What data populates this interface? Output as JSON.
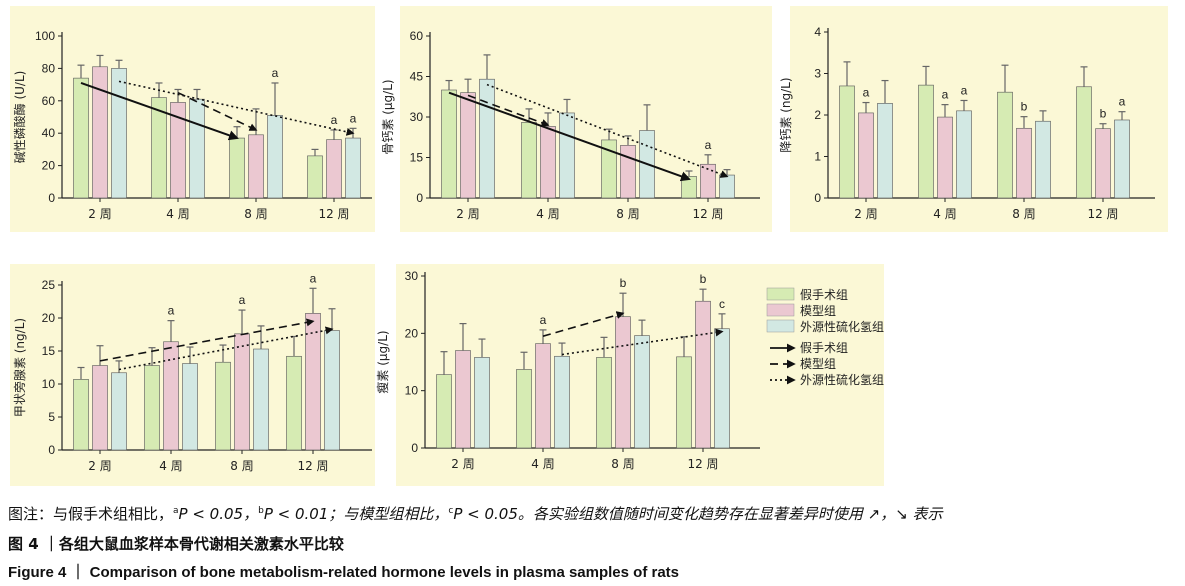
{
  "colors": {
    "panel_bg": "#fbf8d6",
    "sham": "#d6ebb3",
    "model": "#ebc8d1",
    "h2s": "#d2e8e3",
    "bar_edge": "#555555",
    "errorbar": "#666666"
  },
  "chart_data": [
    {
      "type": "bar",
      "ylabel": "碱性磷酸酶 (U/L)",
      "categories": [
        "2 周",
        "4 周",
        "8 周",
        "12 周"
      ],
      "ylim": [
        0,
        100
      ],
      "yticks": [
        0,
        20,
        40,
        60,
        80,
        100
      ],
      "series": [
        {
          "name": "假手术组",
          "values": [
            74,
            62,
            37,
            26
          ],
          "errors": [
            8,
            9,
            7,
            4
          ]
        },
        {
          "name": "模型组",
          "values": [
            81,
            59,
            39,
            36
          ],
          "errors": [
            7,
            8,
            16,
            6
          ]
        },
        {
          "name": "外源性硫化氢组",
          "values": [
            80,
            61,
            51,
            37
          ],
          "errors": [
            5,
            6,
            20,
            6
          ]
        }
      ],
      "annotations": [
        {
          "cat": 2,
          "series": 2,
          "text": "a"
        },
        {
          "cat": 3,
          "series": 1,
          "text": "a"
        },
        {
          "cat": 3,
          "series": 2,
          "text": "a"
        }
      ],
      "trends": [
        {
          "series": 0,
          "from": 0,
          "to": 2,
          "y1": 71,
          "y2": 37
        },
        {
          "series": 1,
          "from": 1,
          "to": 2,
          "y1": 65,
          "y2": 42
        },
        {
          "series": 2,
          "from": 0,
          "to": 3,
          "y1": 72,
          "y2": 40
        }
      ]
    },
    {
      "type": "bar",
      "ylabel": "骨钙素 (μg/L)",
      "categories": [
        "2 周",
        "4 周",
        "8 周",
        "12 周"
      ],
      "ylim": [
        0,
        60
      ],
      "yticks": [
        0,
        15,
        30,
        45,
        60
      ],
      "series": [
        {
          "name": "假手术组",
          "values": [
            40,
            28,
            21.5,
            8
          ],
          "errors": [
            3.5,
            5,
            4,
            2
          ]
        },
        {
          "name": "模型组",
          "values": [
            39,
            26.5,
            19.5,
            12.5
          ],
          "errors": [
            5,
            5,
            3.5,
            3.5
          ]
        },
        {
          "name": "外源性硫化氢组",
          "values": [
            44,
            31.5,
            25,
            8.5
          ],
          "errors": [
            9,
            5,
            9.5,
            2
          ]
        }
      ],
      "annotations": [
        {
          "cat": 3,
          "series": 1,
          "text": "a"
        }
      ],
      "trends": [
        {
          "series": 0,
          "from": 0,
          "to": 3,
          "y1": 39,
          "y2": 7
        },
        {
          "series": 1,
          "from": 0,
          "to": 1,
          "y1": 38,
          "y2": 27
        },
        {
          "series": 2,
          "from": 0,
          "to": 3,
          "y1": 42,
          "y2": 8
        }
      ]
    },
    {
      "type": "bar",
      "ylabel": "降钙素 (ng/L)",
      "categories": [
        "2 周",
        "4 周",
        "8 周",
        "12 周"
      ],
      "ylim": [
        0,
        4
      ],
      "yticks": [
        0,
        1,
        2,
        3,
        4
      ],
      "series": [
        {
          "name": "假手术组",
          "values": [
            2.7,
            2.72,
            2.55,
            2.68
          ],
          "errors": [
            0.58,
            0.45,
            0.65,
            0.48
          ]
        },
        {
          "name": "模型组",
          "values": [
            2.05,
            1.95,
            1.68,
            1.67
          ],
          "errors": [
            0.25,
            0.3,
            0.28,
            0.12
          ]
        },
        {
          "name": "外源性硫化氢组",
          "values": [
            2.28,
            2.1,
            1.85,
            1.88
          ],
          "errors": [
            0.55,
            0.25,
            0.25,
            0.2
          ]
        }
      ],
      "annotations": [
        {
          "cat": 0,
          "series": 1,
          "text": "a"
        },
        {
          "cat": 1,
          "series": 1,
          "text": "a"
        },
        {
          "cat": 1,
          "series": 2,
          "text": "a"
        },
        {
          "cat": 2,
          "series": 1,
          "text": "b"
        },
        {
          "cat": 3,
          "series": 1,
          "text": "b"
        },
        {
          "cat": 3,
          "series": 2,
          "text": "a"
        }
      ],
      "trends": []
    },
    {
      "type": "bar",
      "ylabel": "甲状旁腺素 (ng/L)",
      "categories": [
        "2 周",
        "4 周",
        "8 周",
        "12 周"
      ],
      "ylim": [
        0,
        25
      ],
      "yticks": [
        0,
        5,
        10,
        15,
        20,
        25
      ],
      "series": [
        {
          "name": "假手术组",
          "values": [
            10.7,
            12.8,
            13.3,
            14.2
          ],
          "errors": [
            1.8,
            2.7,
            2.6,
            3
          ]
        },
        {
          "name": "模型组",
          "values": [
            12.8,
            16.4,
            17.6,
            20.7
          ],
          "errors": [
            3,
            3.2,
            3.6,
            3.8
          ]
        },
        {
          "name": "外源性硫化氢组",
          "values": [
            11.7,
            13.1,
            15.3,
            18.1
          ],
          "errors": [
            1.8,
            2.5,
            3.5,
            3.3
          ]
        }
      ],
      "annotations": [
        {
          "cat": 1,
          "series": 1,
          "text": "a"
        },
        {
          "cat": 2,
          "series": 1,
          "text": "a"
        },
        {
          "cat": 3,
          "series": 1,
          "text": "a"
        }
      ],
      "trends": [
        {
          "series": 1,
          "from": 0,
          "to": 3,
          "y1": 13.5,
          "y2": 19.5
        },
        {
          "series": 2,
          "from": 0,
          "to": 3,
          "y1": 12.2,
          "y2": 18.3
        }
      ]
    },
    {
      "type": "bar",
      "ylabel": "瘦素 (μg/L)",
      "categories": [
        "2 周",
        "4 周",
        "8 周",
        "12 周"
      ],
      "ylim": [
        0,
        30
      ],
      "yticks": [
        0,
        10,
        20,
        30
      ],
      "series": [
        {
          "name": "假手术组",
          "values": [
            12.8,
            13.7,
            15.8,
            15.9
          ],
          "errors": [
            4,
            3,
            3.5,
            3.5
          ]
        },
        {
          "name": "模型组",
          "values": [
            17,
            18.2,
            22.9,
            25.6
          ],
          "errors": [
            4.7,
            2.4,
            4.1,
            2.1
          ]
        },
        {
          "name": "外源性硫化氢组",
          "values": [
            15.8,
            16,
            19.6,
            20.8
          ],
          "errors": [
            3.2,
            2.3,
            2.7,
            2.6
          ]
        }
      ],
      "annotations": [
        {
          "cat": 1,
          "series": 1,
          "text": "a"
        },
        {
          "cat": 2,
          "series": 1,
          "text": "b"
        },
        {
          "cat": 3,
          "series": 1,
          "text": "b"
        },
        {
          "cat": 3,
          "series": 2,
          "text": "c"
        }
      ],
      "trends": [
        {
          "series": 1,
          "from": 1,
          "to": 2,
          "y1": 19.5,
          "y2": 23.5
        },
        {
          "series": 2,
          "from": 1,
          "to": 3,
          "y1": 16.3,
          "y2": 20.3
        }
      ]
    }
  ],
  "legend": {
    "bars": [
      "假手术组",
      "模型组",
      "外源性硫化氢组"
    ],
    "lines": [
      "假手术组",
      "模型组",
      "外源性硫化氢组"
    ]
  },
  "caption": {
    "note_prefix": "图注：与假手术组相比，",
    "sup_a": "a",
    "p_a": "P < 0.05，",
    "sup_b": "b",
    "p_b": "P < 0.01；与模型组相比，",
    "sup_c": "c",
    "p_c": "P < 0.05。各实验组数值随时间变化趋势存在显著差异时使用 ↗，↘ 表示",
    "cn_title": "图 4 ｜各组大鼠血浆样本骨代谢相关激素水平比较",
    "en_title": "Figure 4  ｜  Comparison of bone metabolism-related hormone levels in plasma samples of rats"
  }
}
